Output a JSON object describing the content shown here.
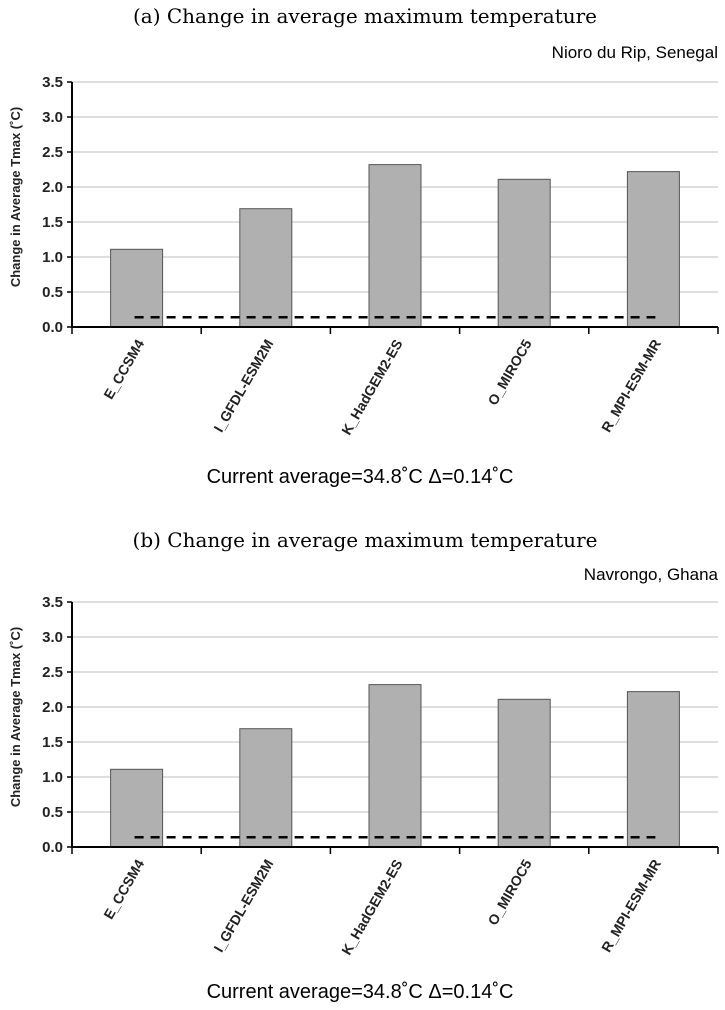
{
  "chart_data": [
    {
      "type": "bar",
      "caption": "(a) Change in average maximum temperature",
      "location": "Nioro du Rip, Senegal",
      "ylabel": "Change in Average Tmax (˚C)",
      "ylim": [
        0,
        3.5
      ],
      "yticks": [
        "0.0",
        "0.5",
        "1.0",
        "1.5",
        "2.0",
        "2.5",
        "3.0",
        "3.5"
      ],
      "categories": [
        "E_CCSM4",
        "I_GFDL-ESM2M",
        "K_HadGEM2-ES",
        "O_MIROC5",
        "R_MPI-ESM-MR"
      ],
      "values": [
        1.11,
        1.69,
        2.32,
        2.11,
        2.22
      ],
      "reference_line": 0.14,
      "note": "Current average=34.8˚C  Δ=0.14˚C",
      "grid": true,
      "colors": {
        "bar": "#b0b0b0",
        "bar_edge": "#555555",
        "grid": "#bdbdbd"
      }
    },
    {
      "type": "bar",
      "caption": "(b) Change in average maximum temperature",
      "location": "Navrongo, Ghana",
      "ylabel": "Change in Average Tmax (˚C)",
      "ylim": [
        0,
        3.5
      ],
      "yticks": [
        "0.0",
        "0.5",
        "1.0",
        "1.5",
        "2.0",
        "2.5",
        "3.0",
        "3.5"
      ],
      "categories": [
        "E_CCSM4",
        "I_GFDL-ESM2M",
        "K_HadGEM2-ES",
        "O_MIROC5",
        "R_MPI-ESM-MR"
      ],
      "values": [
        1.11,
        1.69,
        2.32,
        2.11,
        2.22
      ],
      "reference_line": 0.14,
      "note": "Current average=34.8˚C  Δ=0.14˚C",
      "grid": true,
      "colors": {
        "bar": "#b0b0b0",
        "bar_edge": "#555555",
        "grid": "#bdbdbd"
      }
    }
  ]
}
